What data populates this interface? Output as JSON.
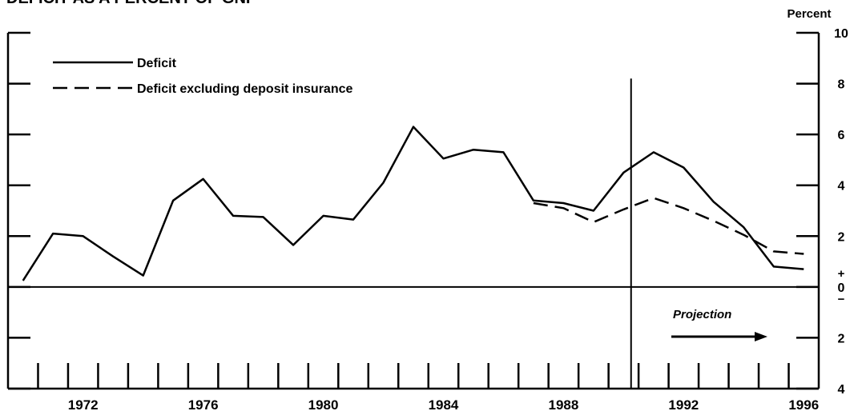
{
  "chart_data": {
    "type": "line",
    "title": "DEFICIT AS A PERCENT OF GNP",
    "y_axis_label": "Percent",
    "x": [
      1970,
      1971,
      1972,
      1973,
      1974,
      1975,
      1976,
      1977,
      1978,
      1979,
      1980,
      1981,
      1982,
      1983,
      1984,
      1985,
      1986,
      1987,
      1988,
      1989,
      1990,
      1991,
      1992,
      1993,
      1994,
      1995,
      1996
    ],
    "series": [
      {
        "name": "Deficit",
        "color": "#000000",
        "dash": false,
        "values": [
          0.25,
          2.1,
          2.0,
          1.2,
          0.45,
          3.4,
          4.25,
          2.8,
          2.75,
          1.65,
          2.8,
          2.65,
          4.1,
          6.3,
          5.05,
          5.4,
          5.3,
          3.4,
          3.3,
          3.0,
          4.5,
          5.3,
          4.7,
          3.35,
          2.35,
          0.8,
          0.7
        ]
      },
      {
        "name": "Deficit excluding deposit insurance",
        "color": "#000000",
        "dash": true,
        "values": [
          null,
          null,
          null,
          null,
          null,
          null,
          null,
          null,
          null,
          null,
          null,
          null,
          null,
          null,
          null,
          null,
          null,
          3.3,
          3.1,
          2.55,
          3.05,
          3.5,
          3.1,
          2.6,
          2.05,
          1.4,
          1.3
        ]
      }
    ],
    "xlim": [
      1969.5,
      1996.5
    ],
    "xticks": [
      1972,
      1976,
      1980,
      1984,
      1988,
      1992,
      1996
    ],
    "ylim": [
      -4,
      10
    ],
    "yticks": [
      {
        "value": -4,
        "label": "4"
      },
      {
        "value": -2,
        "label": "2"
      },
      0,
      2,
      4,
      6,
      8,
      10
    ],
    "sign_labels": [
      "+",
      "−"
    ],
    "projection_start": 1990.25,
    "annotation": "Projection"
  }
}
